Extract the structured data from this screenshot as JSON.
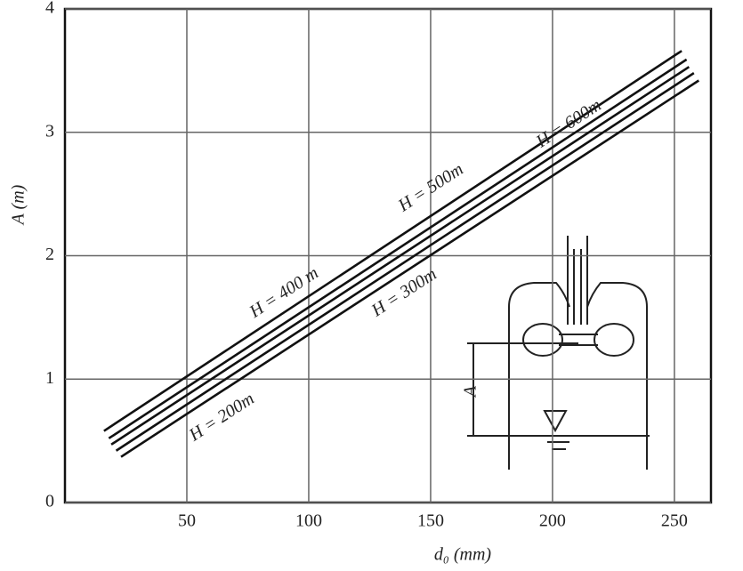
{
  "chart_data": {
    "type": "line",
    "x_label": "d₀ (mm)",
    "y_label": "A (m)",
    "xlim": [
      0,
      265
    ],
    "ylim": [
      0,
      4
    ],
    "xticks": [
      50,
      100,
      150,
      200,
      250
    ],
    "yticks": [
      0,
      1,
      2,
      3,
      4
    ],
    "grid": true,
    "series": [
      {
        "name": "H = 600m",
        "color": "#111111",
        "x": [
          16,
          253
        ],
        "values": [
          0.58,
          3.66
        ]
      },
      {
        "name": "H = 500m",
        "color": "#111111",
        "x": [
          18,
          255
        ],
        "values": [
          0.52,
          3.59
        ]
      },
      {
        "name": "H = 400 m",
        "color": "#111111",
        "x": [
          19,
          256
        ],
        "values": [
          0.47,
          3.53
        ]
      },
      {
        "name": "H = 300m",
        "color": "#111111",
        "x": [
          21,
          258
        ],
        "values": [
          0.42,
          3.48
        ]
      },
      {
        "name": "H = 200m",
        "color": "#111111",
        "x": [
          23,
          260
        ],
        "values": [
          0.37,
          3.42
        ]
      }
    ],
    "inset_label": "A"
  }
}
